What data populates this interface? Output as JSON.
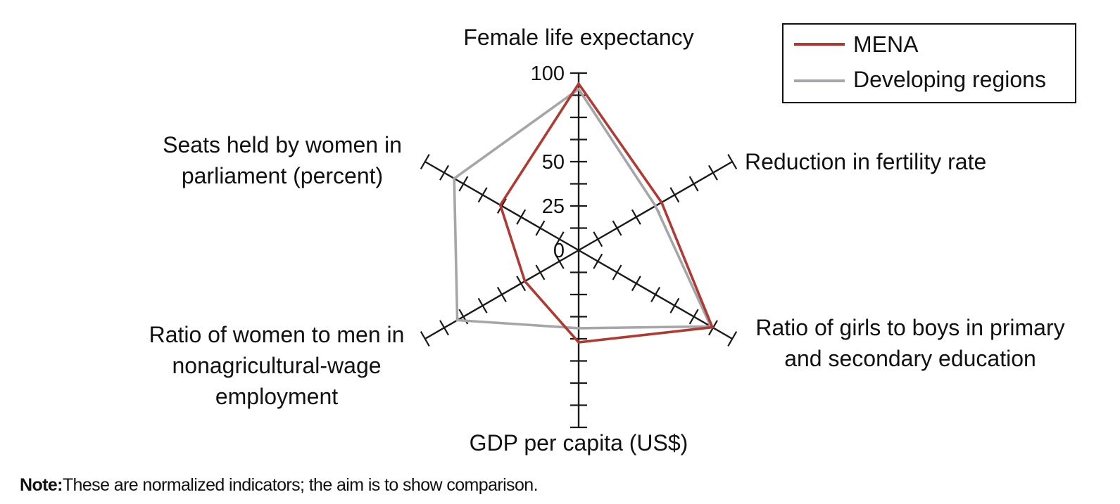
{
  "chart_data": {
    "type": "radar",
    "axes": [
      {
        "label_lines": [
          "Female life expectancy"
        ]
      },
      {
        "label_lines": [
          "Reduction in fertility rate"
        ]
      },
      {
        "label_lines": [
          "Ratio of girls to boys in primary",
          "and secondary education"
        ]
      },
      {
        "label_lines": [
          "GDP per capita (US$)"
        ]
      },
      {
        "label_lines": [
          "Ratio of women to men in",
          "nonagricultural-wage",
          "employment"
        ]
      },
      {
        "label_lines": [
          "Seats held by women in",
          "parliament (percent)"
        ]
      }
    ],
    "r_range": [
      0,
      100
    ],
    "tick_labels": [
      "0",
      "25",
      "50",
      "100"
    ],
    "tick_values": [
      0,
      25,
      50,
      100
    ],
    "minor_tick_step": 12.5,
    "series": [
      {
        "name": "MENA",
        "color": "#b03a32",
        "values": [
          94,
          54,
          87,
          52,
          35,
          51
        ]
      },
      {
        "name": "Developing regions",
        "color": "#a6a6aa",
        "values": [
          91,
          50,
          86,
          44,
          79,
          81
        ]
      }
    ],
    "legend_position": "top-right",
    "grid": false
  },
  "note": {
    "label": "Note:",
    "text": "These are normalized indicators; the aim is to show comparison."
  }
}
